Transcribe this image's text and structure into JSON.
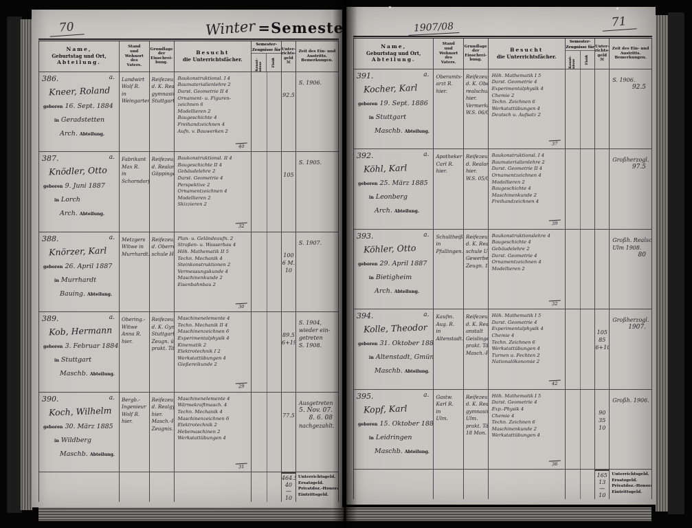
{
  "book": {
    "semester_title_handwritten": "Winter",
    "semester_title_printed": "=Semester",
    "year_handwritten": "1907/08",
    "left_page_number": "70",
    "right_page_number": "71"
  },
  "labels": {
    "geboren": "geboren",
    "in": "in",
    "abteilung": "Abteilung."
  },
  "columns": {
    "name": [
      "Name,",
      "Geburtstag und Ort,",
      "Abteilung."
    ],
    "stand": [
      "Stand",
      "und",
      "Wohnort",
      "des",
      "Vaters."
    ],
    "grundlage": [
      "Grundlage",
      "der",
      "Einschrei-",
      "bung."
    ],
    "besuch": [
      "Besucht",
      "die Unterrichtsfächer."
    ],
    "zeugnisse_title": [
      "Semester-",
      "Zeugnisse für"
    ],
    "zeugnisse_sub": [
      "Kennt- nisse",
      "Fleiß"
    ],
    "geld": [
      "Unter-",
      "richts-",
      "geld",
      "ℳ"
    ],
    "zeit": [
      "Zeit des Ein- und",
      "Austritts.",
      "Bemerkungen."
    ]
  },
  "fee_stamp": [
    "Unterrichtsgeld.",
    "Ersatzgeld.",
    "Privatdoz.-Honorar.",
    "Eintrittsgeld."
  ],
  "pages": [
    {
      "side": "left",
      "totals": [
        "464.5",
        "40",
        "—",
        "10"
      ],
      "entries": [
        {
          "no": "386.",
          "corner": "a.",
          "name": "Kneer, Roland",
          "birth_date": "16. Sept. 1884",
          "birth_place": "Geradstetten",
          "abt_prefix": "Arch.",
          "father": [
            "Landwirt",
            "Wolf R.",
            "in",
            "Weingarten."
          ],
          "basis": [
            "Reifezeugn.",
            "d. K. Real-",
            "gymnasiums",
            "Stuttgart."
          ],
          "subjects": [
            "Baukonstruktionsl. I 4",
            "Baumaterialienlehre 2",
            "Darst. Geometrie II 4",
            "Ornament- u. Figuren-",
            "zeichnen 6",
            "Modellieren 2",
            "Baugeschichte 4",
            "Freihandzeichnen 4",
            "Aufn. v. Bauwerken 2"
          ],
          "hours": "40",
          "fees": [
            "92.5"
          ],
          "remarks": [
            "S. 1906."
          ]
        },
        {
          "no": "387.",
          "corner": "a.",
          "name": "Knödler, Otto",
          "birth_date": "9. Juni 1887",
          "birth_place": "Lorch",
          "abt_prefix": "Arch.",
          "father": [
            "Fabrikant",
            "Max R.",
            "in",
            "Schorndorf."
          ],
          "basis": [
            "Reifezeugn.",
            "d. Realanst.",
            "Göppingen."
          ],
          "subjects": [
            "Baukonstruktionsl. II 4",
            "Baugeschichte II 4",
            "Gebäudelehre 2",
            "Darst. Geometrie 4",
            "Perspektive 2",
            "Ornamentzeichnen 4",
            "Modellieren 2",
            "Skizzieren 2"
          ],
          "hours": "32",
          "fees": [
            "105"
          ],
          "remarks": [
            "S. 1905."
          ]
        },
        {
          "no": "388.",
          "corner": "a.",
          "name": "Knörzer, Karl",
          "birth_date": "26. April 1887",
          "birth_place": "Murrhardt",
          "abt_prefix": "Bauing.",
          "father": [
            "Metzgers",
            "Witwe in",
            "Murrhardt."
          ],
          "basis": [
            "Reifezeugn.",
            "d. Oberreal-",
            "schule Hall."
          ],
          "subjects": [
            "Plan- u. Geländeaufn. 2",
            "Straßen- u. Wasserbau 4",
            "Höh. Mathematik II 5",
            "Techn. Mechanik 4",
            "Steinkonstruktionen 2",
            "Vermessungskunde 4",
            "Maschinenkunde 2",
            "Eisenbahnbau 2"
          ],
          "hours": "30",
          "fees": [
            "100",
            "6 M.",
            "10"
          ],
          "remarks": [
            "S. 1907."
          ]
        },
        {
          "no": "389.",
          "corner": "a.",
          "name": "Kob, Hermann",
          "birth_date": "3. Februar 1884",
          "birth_place": "Stuttgart",
          "abt_prefix": "Maschb.",
          "father": [
            "Obering.-",
            "Witwe",
            "Anna R.",
            "hier."
          ],
          "basis": [
            "Reifezeugn.",
            "d. K. Gymn.",
            "Stuttgart.",
            "Zeugn. üb.",
            "prakt. Tätigk."
          ],
          "subjects": [
            "Maschinenelemente 4",
            "Techn. Mechanik II 4",
            "Maschinenzeichnen 6",
            "Experimentalphysik 4",
            "Kinematik 2",
            "Elektrotechnik I 2",
            "Werkstattübungen 4",
            "Gießereikunde 2"
          ],
          "hours": "29",
          "fees": [
            "89.5",
            "6+19"
          ],
          "remarks": [
            "S. 1904,",
            "wieder ein-",
            "getreten",
            "S. 1908."
          ]
        },
        {
          "no": "390.",
          "corner": "a.",
          "name": "Koch, Wilhelm",
          "birth_date": "30. März 1885",
          "birth_place": "Wildberg",
          "abt_prefix": "Maschb.",
          "father": [
            "Bergb.-",
            "Ingenieur",
            "Wolf R.",
            "hier."
          ],
          "basis": [
            "Reifezeugn.",
            "d. Realgymn.",
            "hier.",
            "Masch.-Praxis",
            "Zeugnis."
          ],
          "subjects": [
            "Maschinenelemente 4",
            "Wärmekraftmasch. 4",
            "Techn. Mechanik 4",
            "Maschinenzeichnen 6",
            "Elektrotechnik 2",
            "Hebemaschinen 2",
            "Werkstattübungen 4"
          ],
          "hours": "31",
          "fees": [
            "77.5"
          ],
          "remarks": [
            "Ausgetreten",
            "5. Nov. 07.",
            "8. 6. 08",
            "nachgezahlt."
          ]
        }
      ]
    },
    {
      "side": "right",
      "totals": [
        "165",
        "13",
        "—",
        "10"
      ],
      "entries": [
        {
          "no": "391.",
          "corner": "a.",
          "name": "Kocher, Karl",
          "birth_date": "19. Sept. 1886",
          "birth_place": "Stuttgart",
          "abt_prefix": "Maschb.",
          "father": [
            "Oberamts-",
            "arzt R.",
            "hier."
          ],
          "basis": [
            "Reifezeugn.",
            "d. K. Ober-",
            "realschule",
            "hier.",
            "Vermerkt",
            "W.S. 06/07."
          ],
          "subjects": [
            "Höh. Mathematik I 5",
            "Darst. Geometrie 4",
            "Experimentalphysik 4",
            "Chemie 2",
            "Techn. Zeichnen 6",
            "Werkstattübungen 4",
            "Deutsch u. Aufsatz 2"
          ],
          "hours": "37",
          "fees": [],
          "remarks": [
            "S. 1906.",
            "92.5"
          ]
        },
        {
          "no": "392.",
          "corner": "a.",
          "name": "Köhl, Karl",
          "birth_date": "25. März 1885",
          "birth_place": "Leonberg",
          "abt_prefix": "Arch.",
          "father": [
            "Apotheker",
            "Carl R.",
            "hier."
          ],
          "basis": [
            "Reifezeugn.",
            "d. Realanst.",
            "hier.",
            "W.S. 05/06."
          ],
          "subjects": [
            "Baukonstruktionsl. I 4",
            "Baumaterialienlehre 2",
            "Darst. Geometrie II 4",
            "Ornamentzeichnen 4",
            "Modellieren 2",
            "Baugeschichte 4",
            "Maschinenkunde 2",
            "Freihandzeichnen 4"
          ],
          "hours": "39",
          "fees": [],
          "remarks": [
            "Großherzogl.",
            "97.5"
          ]
        },
        {
          "no": "393.",
          "corner": "a.",
          "name": "Köhler, Otto",
          "birth_date": "29. April 1887",
          "birth_place": "Bietigheim",
          "abt_prefix": "Arch.",
          "father": [
            "Schultheiß",
            "in",
            "Pfullingen."
          ],
          "basis": [
            "Reifezeugn.",
            "d. K. Real-",
            "schule Ulm.",
            "Gewerbesch.",
            "Zeugn. 1907."
          ],
          "subjects": [
            "Baukonstruktionslehre 4",
            "Baugeschichte 4",
            "Gebäudelehre 2",
            "Darst. Geometrie 4",
            "Ornamentzeichnen 4",
            "Modellieren 2"
          ],
          "hours": "32",
          "fees": [],
          "remarks": [
            "Großh. Realsch.",
            "Ulm 1908.",
            "80"
          ]
        },
        {
          "no": "394.",
          "corner": "a.",
          "name": "Kolle, Theodor",
          "birth_date": "31. Oktober 1887",
          "birth_place": "Altenstadt, Gmünd.",
          "abt_prefix": "Maschb.",
          "father": [
            "Kaufm.",
            "Aug. R.",
            "in",
            "Altenstadt."
          ],
          "basis": [
            "Reifezeugn.",
            "d. K. Real-",
            "anstalt",
            "Geislingen.",
            "prakt. Tät.",
            "Masch.-Fabr."
          ],
          "subjects": [
            "Höh. Mathematik I 5",
            "Darst. Geometrie 4",
            "Experimentalphysik 4",
            "Chemie 4",
            "Techn. Zeichnen 6",
            "Werkstattübungen 4",
            "Turnen u. Fechten 2",
            "Nationalökonomie 2"
          ],
          "hours": "42",
          "fees": [
            "105",
            "85",
            "6+10"
          ],
          "remarks": [
            "Großherzogl.",
            "1907."
          ]
        },
        {
          "no": "395.",
          "corner": "a.",
          "name": "Kopf, Karl",
          "birth_date": "15. Oktober 1887",
          "birth_place": "Leidringen",
          "abt_prefix": "Maschb.",
          "father": [
            "Gastw.",
            "Karl R.",
            "in",
            "Ulm."
          ],
          "basis": [
            "Reifezeugn.",
            "d. K. Real-",
            "gymnasiums",
            "Ulm.",
            "prakt. Tät.",
            "18 Mon."
          ],
          "subjects": [
            "Höh. Mathematik I 5",
            "Darst. Geometrie 4",
            "Exp.-Physik 4",
            "Chemie 4",
            "Techn. Zeichnen 6",
            "Maschinenkunde 2",
            "Werkstattübungen 4"
          ],
          "hours": "36",
          "fees": [
            "90",
            "35",
            "10"
          ],
          "remarks": [
            "Großh. 1906."
          ]
        }
      ]
    }
  ]
}
